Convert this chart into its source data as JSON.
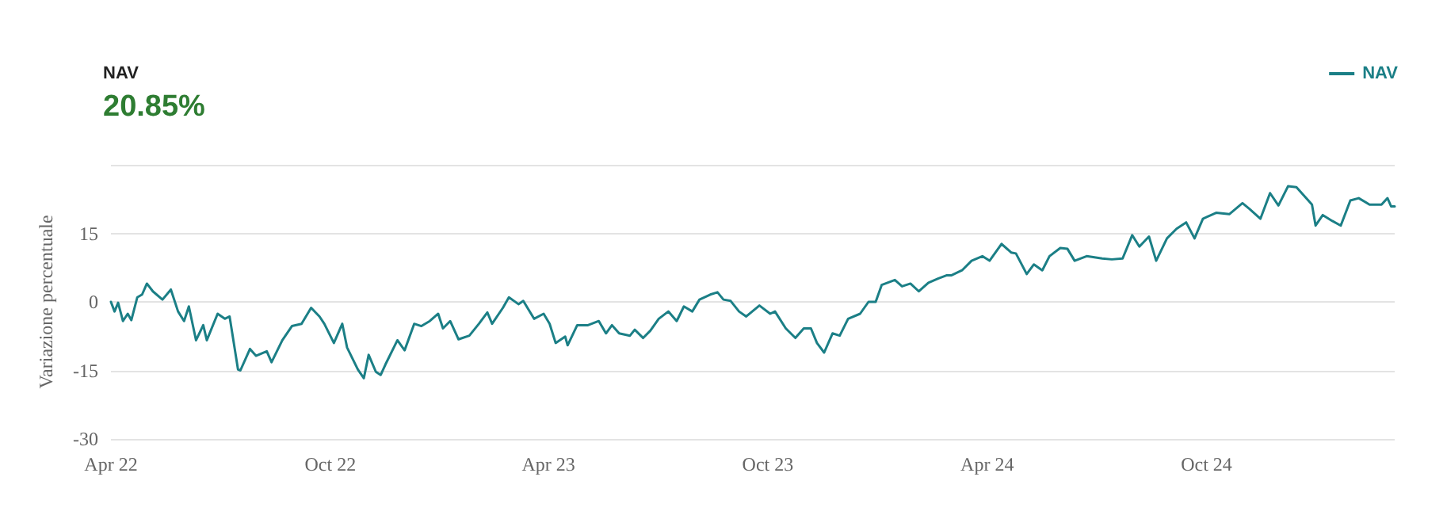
{
  "chart_data": {
    "type": "line",
    "title": "NAV",
    "subtitle": "20.85%",
    "ylabel": "Variazione percentuale",
    "xlim": [
      "2022-04-01",
      "2025-03-07"
    ],
    "xticks": [
      {
        "value": "2022-04-01",
        "label": "Apr 22"
      },
      {
        "value": "2022-10-01",
        "label": "Oct 22"
      },
      {
        "value": "2023-04-01",
        "label": "Apr 23"
      },
      {
        "value": "2023-10-01",
        "label": "Oct 23"
      },
      {
        "value": "2024-04-01",
        "label": "Apr 24"
      },
      {
        "value": "2024-10-01",
        "label": "Oct 24"
      }
    ],
    "ylim": [
      -30,
      30
    ],
    "yticks": [
      -30,
      -15,
      0,
      15,
      {
        "value": 30,
        "label": null
      }
    ],
    "grid": "y",
    "legend": "top right",
    "marker": "none",
    "line_style": "solid",
    "x": [
      "2022-04-01",
      "2022-04-04",
      "2022-04-07",
      "2022-04-11",
      "2022-04-15",
      "2022-04-18",
      "2022-04-23",
      "2022-04-27",
      "2022-05-01",
      "2022-05-06",
      "2022-05-14",
      "2022-05-21",
      "2022-05-27",
      "2022-06-01",
      "2022-06-05",
      "2022-06-11",
      "2022-06-17",
      "2022-06-20",
      "2022-06-29",
      "2022-07-05",
      "2022-07-09",
      "2022-07-16",
      "2022-07-18",
      "2022-07-26",
      "2022-07-31",
      "2022-08-09",
      "2022-08-13",
      "2022-08-22",
      "2022-08-30",
      "2022-09-07",
      "2022-09-15",
      "2022-09-22",
      "2022-09-26",
      "2022-10-04",
      "2022-10-11",
      "2022-10-15",
      "2022-10-24",
      "2022-10-29",
      "2022-11-02",
      "2022-11-08",
      "2022-11-12",
      "2022-11-16",
      "2022-11-26",
      "2022-12-02",
      "2022-12-10",
      "2022-12-16",
      "2022-12-23",
      "2022-12-30",
      "2023-01-03",
      "2023-01-09",
      "2023-01-16",
      "2023-01-25",
      "2023-02-02",
      "2023-02-09",
      "2023-02-13",
      "2023-02-22",
      "2023-02-27",
      "2023-03-07",
      "2023-03-11",
      "2023-03-20",
      "2023-03-28",
      "2023-04-02",
      "2023-04-07",
      "2023-04-15",
      "2023-04-17",
      "2023-04-25",
      "2023-05-04",
      "2023-05-13",
      "2023-05-19",
      "2023-05-24",
      "2023-05-30",
      "2023-06-08",
      "2023-06-12",
      "2023-06-19",
      "2023-06-25",
      "2023-07-02",
      "2023-07-10",
      "2023-07-17",
      "2023-07-23",
      "2023-07-30",
      "2023-08-05",
      "2023-08-14",
      "2023-08-20",
      "2023-08-25",
      "2023-08-31",
      "2023-09-07",
      "2023-09-13",
      "2023-09-24",
      "2023-10-03",
      "2023-10-07",
      "2023-10-16",
      "2023-10-24",
      "2023-10-31",
      "2023-11-06",
      "2023-11-11",
      "2023-11-17",
      "2023-11-24",
      "2023-11-30",
      "2023-12-07",
      "2023-12-17",
      "2023-12-24",
      "2023-12-30",
      "2024-01-04",
      "2024-01-15",
      "2024-01-21",
      "2024-01-28",
      "2024-02-04",
      "2024-02-12",
      "2024-02-20",
      "2024-02-27",
      "2024-03-02",
      "2024-03-11",
      "2024-03-19",
      "2024-03-28",
      "2024-04-03",
      "2024-04-13",
      "2024-04-21",
      "2024-04-25",
      "2024-05-04",
      "2024-05-10",
      "2024-05-17",
      "2024-05-23",
      "2024-06-01",
      "2024-06-07",
      "2024-06-13",
      "2024-06-23",
      "2024-07-06",
      "2024-07-14",
      "2024-07-23",
      "2024-07-31",
      "2024-08-06",
      "2024-08-14",
      "2024-08-20",
      "2024-08-29",
      "2024-09-06",
      "2024-09-14",
      "2024-09-21",
      "2024-09-28",
      "2024-10-09",
      "2024-10-20",
      "2024-10-31",
      "2024-11-06",
      "2024-11-15",
      "2024-11-23",
      "2024-11-30",
      "2024-12-08",
      "2024-12-15",
      "2024-12-28",
      "2024-12-31",
      "2025-01-06",
      "2025-01-14",
      "2025-01-21",
      "2025-01-29",
      "2025-02-05",
      "2025-02-14",
      "2025-02-24",
      "2025-03-01",
      "2025-03-04",
      "2025-03-07"
    ],
    "series": [
      {
        "name": "NAV",
        "color": "#1b7f86",
        "values": [
          0,
          -2.1,
          -0.2,
          -4.2,
          -2.6,
          -4,
          1,
          1.6,
          4,
          2.3,
          0.5,
          2.7,
          -2.1,
          -4.2,
          -1,
          -8.4,
          -5.1,
          -8.4,
          -2.6,
          -3.7,
          -3.2,
          -14.8,
          -15,
          -10.3,
          -11.8,
          -10.8,
          -13.2,
          -8.4,
          -5.3,
          -4.8,
          -1.3,
          -3.2,
          -4.8,
          -9,
          -4.8,
          -10,
          -14.8,
          -16.7,
          -11.6,
          -15.3,
          -16,
          -13.7,
          -8.4,
          -10.6,
          -4.8,
          -5.3,
          -4.2,
          -2.6,
          -5.8,
          -4.2,
          -8.2,
          -7.4,
          -4.8,
          -2.3,
          -4.8,
          -1.3,
          1,
          -0.5,
          0.2,
          -3.7,
          -2.6,
          -4.8,
          -9,
          -7.6,
          -9.5,
          -5.1,
          -5.1,
          -4.2,
          -6.9,
          -5.1,
          -6.9,
          -7.4,
          -6.1,
          -7.9,
          -6.3,
          -3.7,
          -2.1,
          -4.2,
          -1,
          -2.1,
          0.5,
          1.6,
          2.1,
          0.5,
          0.2,
          -2.1,
          -3.2,
          -0.8,
          -2.6,
          -2.1,
          -5.8,
          -7.9,
          -5.8,
          -5.8,
          -9,
          -11.1,
          -6.9,
          -7.4,
          -3.7,
          -2.6,
          0,
          0,
          3.7,
          4.8,
          3.4,
          4,
          2.3,
          4.2,
          5.1,
          5.8,
          5.8,
          6.9,
          9,
          10,
          9,
          12.7,
          10.8,
          10.6,
          6.1,
          8.2,
          6.9,
          10,
          11.8,
          11.6,
          9,
          10,
          9.5,
          9.3,
          9.5,
          14.6,
          12.1,
          14.3,
          9,
          13.9,
          16,
          17.4,
          13.9,
          18.2,
          19.5,
          19.2,
          21.6,
          20.3,
          18.2,
          23.8,
          21.1,
          25.3,
          25.1,
          21.3,
          16.7,
          19,
          17.7,
          16.7,
          22.2,
          22.7,
          21.3,
          21.3,
          22.7,
          20.9,
          20.9
        ]
      }
    ]
  }
}
